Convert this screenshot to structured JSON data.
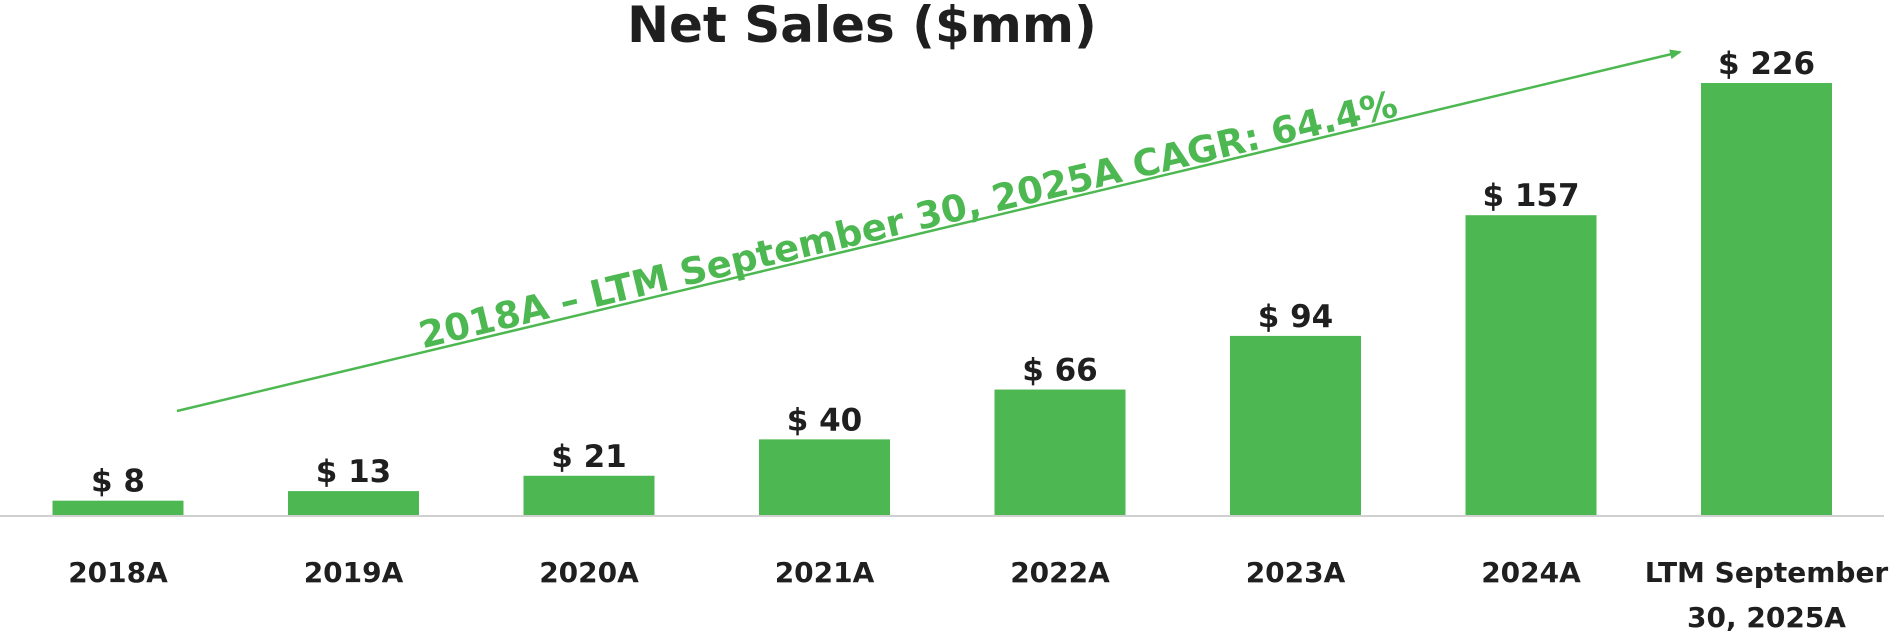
{
  "chart_data": {
    "type": "bar",
    "title": "Net Sales ($mm)",
    "categories": [
      "2018A",
      "2019A",
      "2020A",
      "2021A",
      "2022A",
      "2023A",
      "2024A",
      "LTM September 30, 2025A"
    ],
    "category_lines": [
      [
        "2018A"
      ],
      [
        "2019A"
      ],
      [
        "2020A"
      ],
      [
        "2021A"
      ],
      [
        "2022A"
      ],
      [
        "2023A"
      ],
      [
        "2024A"
      ],
      [
        "LTM September",
        "30, 2025A"
      ]
    ],
    "values": [
      8,
      13,
      21,
      40,
      66,
      94,
      157,
      226
    ],
    "value_labels": [
      "$ 8",
      "$ 13",
      "$ 21",
      "$ 40",
      "$ 66",
      "$ 94",
      "$ 157",
      "$ 226"
    ],
    "ylim": [
      0,
      226
    ],
    "xlabel": "",
    "ylabel": "",
    "grid": false,
    "legend": "none",
    "annotation": {
      "text": "2018A – LTM September 30, 2025A CAGR: 64.4%",
      "style": "arrow",
      "from_category": "2018A",
      "to_category": "LTM September 30, 2025A"
    },
    "colors": {
      "bar": "#4db851",
      "annotation": "#4db851",
      "axis": "#d0d0d0",
      "text": "#1f1f1f"
    }
  }
}
